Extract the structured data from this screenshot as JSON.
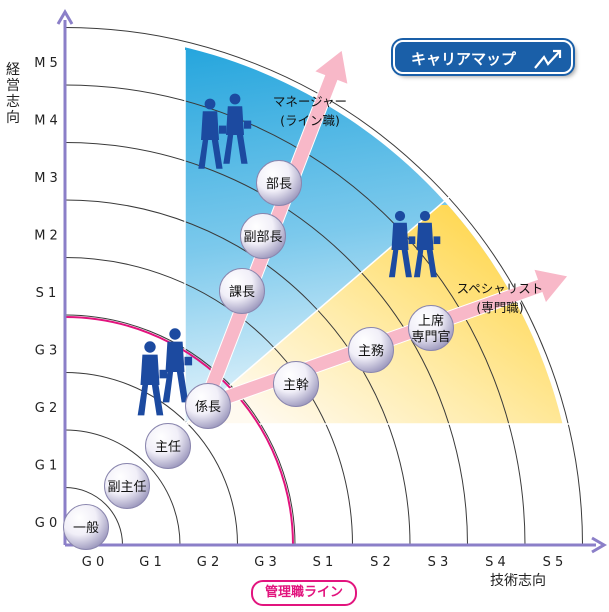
{
  "y_axis": {
    "title_chars": [
      "経",
      "営",
      "志",
      "向"
    ],
    "ticks": [
      "G 0",
      "G 1",
      "G 2",
      "G 3",
      "S 1",
      "M 2",
      "M 3",
      "M 4",
      "M 5"
    ]
  },
  "x_axis": {
    "title": "技術志向",
    "ticks": [
      "G 0",
      "G 1",
      "G 2",
      "G 3",
      "S 1",
      "S 2",
      "S 3",
      "S 4",
      "S 5"
    ]
  },
  "badge": {
    "label": "キャリアマップ"
  },
  "management_line": {
    "label": "管理職ライン"
  },
  "manager_track": {
    "line1": "マネージャー",
    "line2": "(ライン職)"
  },
  "specialist_track": {
    "line1": "スペシャリスト",
    "line2": "(専門職)"
  },
  "common_nodes": [
    "一般",
    "副主任",
    "主任",
    "係長"
  ],
  "manager_nodes": [
    "課長",
    "副部長",
    "部長"
  ],
  "specialist_nodes": [
    {
      "line1": "主幹",
      "line2": ""
    },
    {
      "line1": "主務",
      "line2": ""
    },
    {
      "line1": "上席",
      "line2": "専門官"
    }
  ],
  "colors": {
    "manager_zone": "#2aa7dc",
    "specialist_zone": "#ffd94a",
    "axis": "#8b7fc8",
    "management_line": "#e2147e",
    "arrow": "#f8b8c8",
    "figure": "#1c4aa0",
    "badge": "#1a5fa8"
  }
}
